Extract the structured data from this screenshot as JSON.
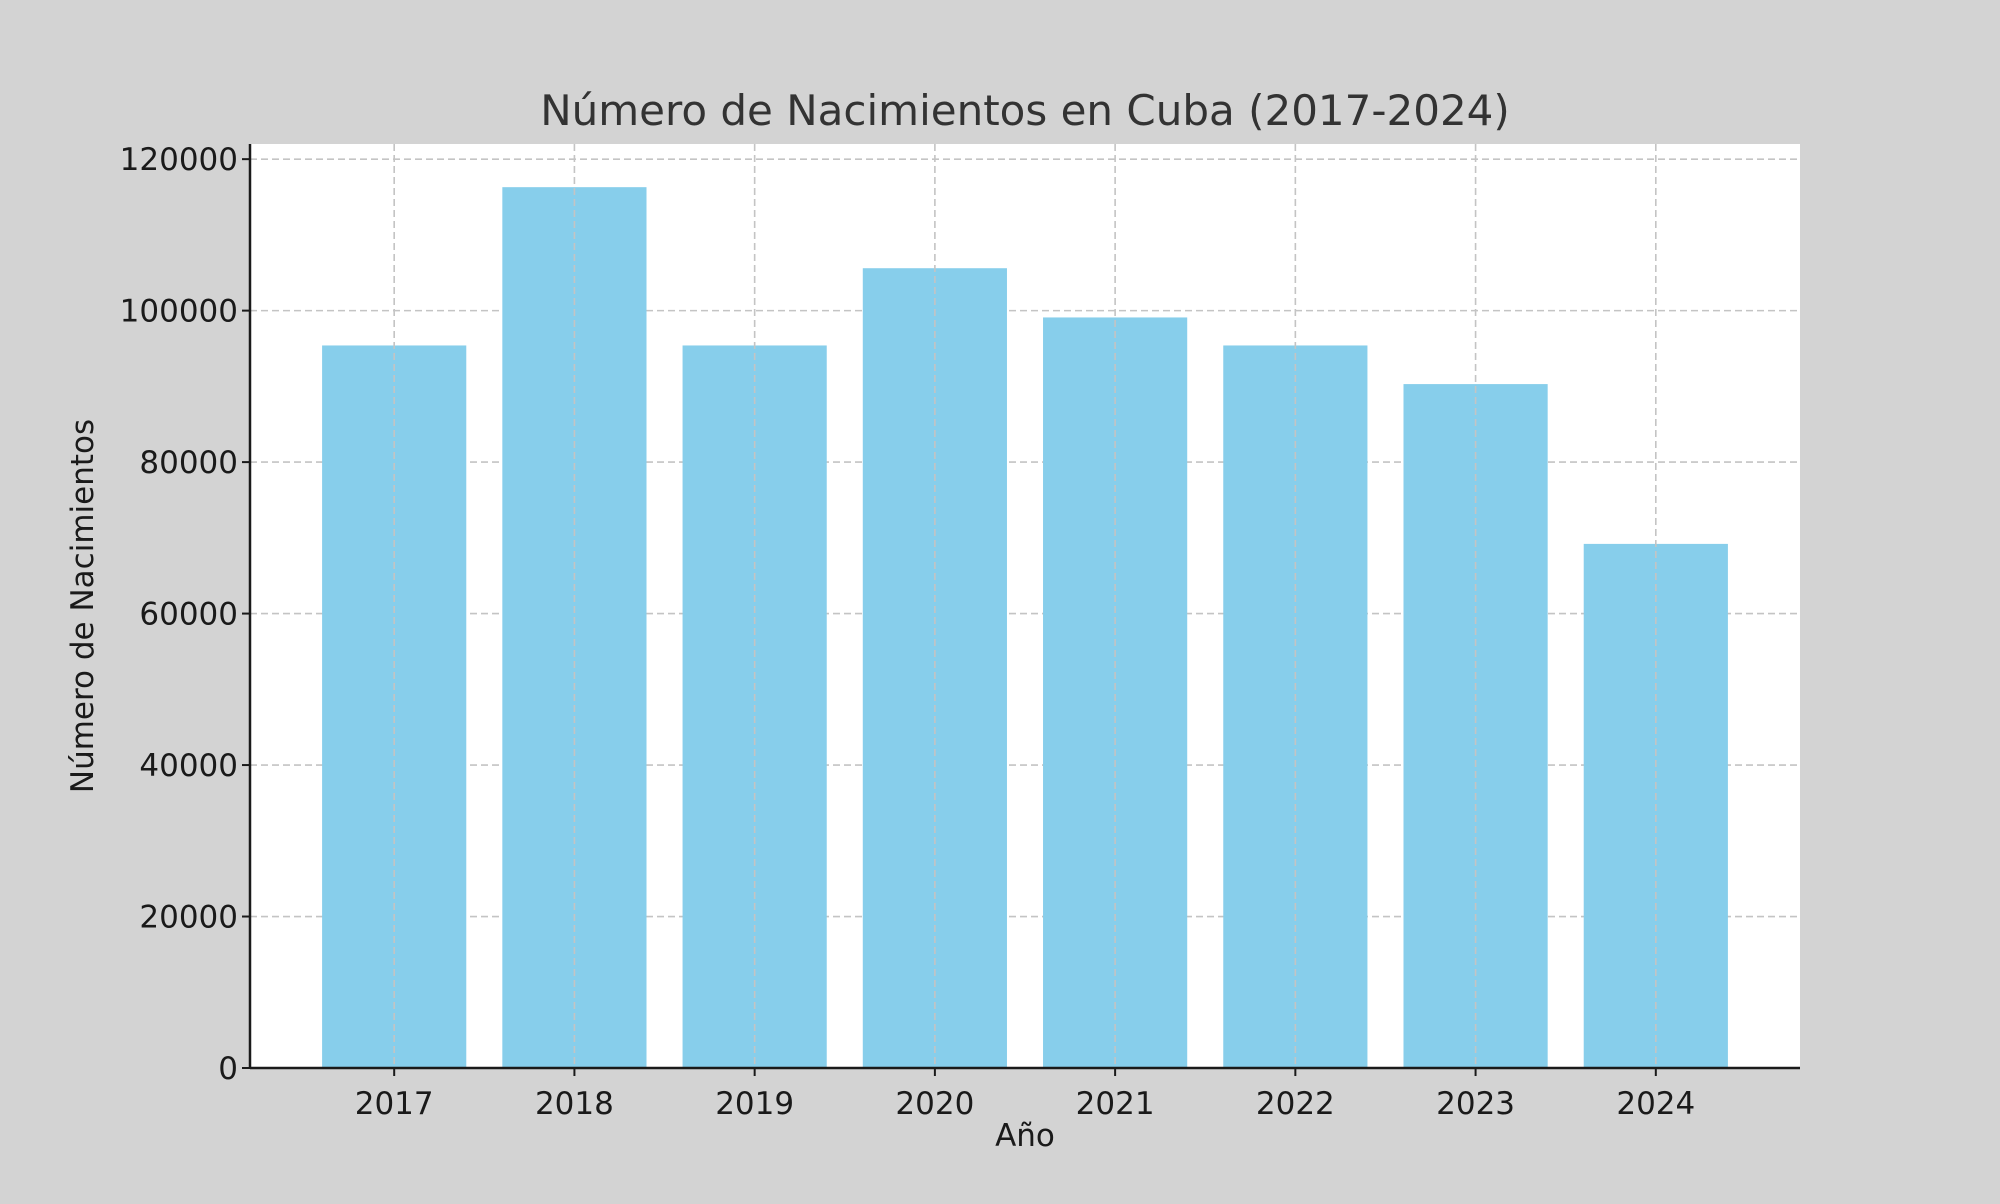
{
  "chart_data": {
    "type": "bar",
    "title": "Número de Nacimientos en Cuba (2017-2024)",
    "xlabel": "Año",
    "ylabel": "Número de Nacimientos",
    "categories": [
      "2017",
      "2018",
      "2019",
      "2020",
      "2021",
      "2022",
      "2023",
      "2024"
    ],
    "values": [
      95400,
      116300,
      95400,
      105600,
      99100,
      95400,
      90300,
      69200
    ],
    "ylim": [
      0,
      122000
    ],
    "yticks": [
      0,
      20000,
      40000,
      60000,
      80000,
      100000,
      120000
    ],
    "grid": true,
    "legend": "none",
    "colors": {
      "bar": "#87ceeb",
      "figure_background": "#d3d3d3",
      "plot_background": "#ffffff",
      "grid": "#c4c4c4",
      "axis": "#1a1a1a",
      "text": "#333333"
    }
  }
}
